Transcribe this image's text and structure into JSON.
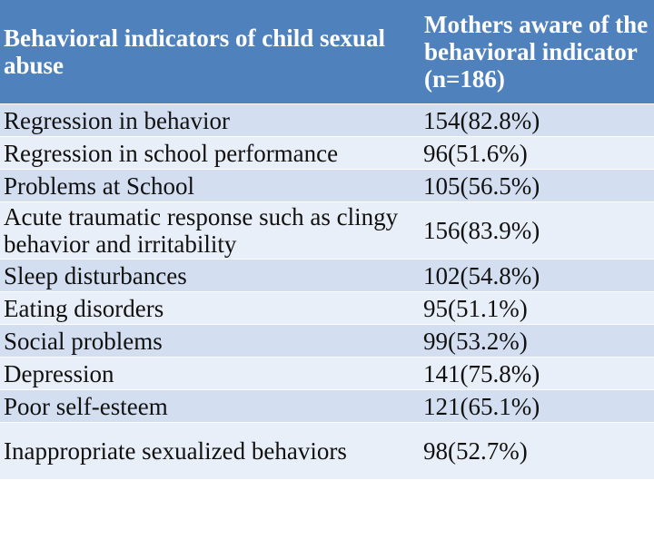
{
  "table": {
    "headers": [
      "Behavioral indicators of child sexual abuse",
      "Mothers aware of the behavioral indicator (n=186)"
    ],
    "rows": [
      {
        "indicator": "Regression in behavior",
        "value": "154(82.8%)",
        "lines": 1
      },
      {
        "indicator": "Regression in school performance",
        "value": "96(51.6%)",
        "lines": 1
      },
      {
        "indicator": "Problems at School",
        "value": "105(56.5%)",
        "lines": 1
      },
      {
        "indicator": "Acute traumatic response such as clingy behavior and irritability",
        "value": "156(83.9%)",
        "lines": 2
      },
      {
        "indicator": "Sleep disturbances",
        "value": "102(54.8%)",
        "lines": 1
      },
      {
        "indicator": "Eating disorders",
        "value": "95(51.1%)",
        "lines": 1
      },
      {
        "indicator": "Social problems",
        "value": "99(53.2%)",
        "lines": 1
      },
      {
        "indicator": "Depression",
        "value": "141(75.8%)",
        "lines": 1
      },
      {
        "indicator": "Poor self-esteem",
        "value": "121(65.1%)",
        "lines": 1
      },
      {
        "indicator": "Inappropriate sexualized behaviors",
        "value": "98(52.7%)",
        "lines": 2
      }
    ]
  },
  "colors": {
    "header_bg": "#4f81bd",
    "header_text": "#ffffff",
    "row_band_dark": "#d3dff0",
    "row_band_light": "#e9eff8"
  }
}
